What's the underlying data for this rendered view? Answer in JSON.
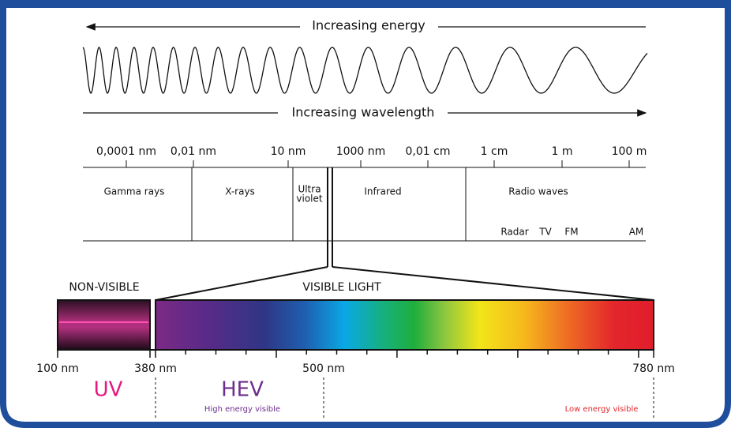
{
  "header": {
    "energy": "Increasing energy",
    "wavelength": "Increasing wavelength"
  },
  "scale": [
    "0,0001 nm",
    "0,01 nm",
    "10 nm",
    "1000 nm",
    "0,01 cm",
    "1 cm",
    "1 m",
    "100 m"
  ],
  "regions": [
    "Gamma rays",
    "X-rays",
    "Ultra",
    "violet",
    "Infrared",
    "Radio waves"
  ],
  "radio_bands": [
    "Radar",
    "TV",
    "FM",
    "AM"
  ],
  "sections": {
    "non_visible": "NON-VISIBLE",
    "visible": "VISIBLE LIGHT"
  },
  "wavelengths": [
    "100 nm",
    "380 nm",
    "500 nm",
    "780 nm"
  ],
  "bands": {
    "uv": "UV",
    "hev": "HEV",
    "hev_note": "High energy visible",
    "low_note": "Low energy visible"
  }
}
